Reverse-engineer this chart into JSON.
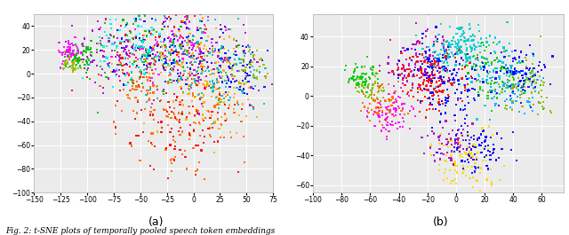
{
  "title_a": "(a)",
  "title_b": "(b)",
  "caption": "Fig. 2: t-SNE plots of temporally pooled speech token embeddings",
  "fig_width": 6.4,
  "fig_height": 2.65,
  "dpi": 100,
  "plot_bg": "#ebebeb",
  "colors_a": [
    "#FF0000",
    "#00BB00",
    "#0000FF",
    "#FF00FF",
    "#00BBBB",
    "#FFAA00",
    "#AA00CC",
    "#FF6600",
    "#99BB00",
    "#00EEEE"
  ],
  "colors_b": [
    "#FF0000",
    "#00CC00",
    "#0000FF",
    "#FF00FF",
    "#00CCCC",
    "#FFD700",
    "#AA00CC",
    "#FF6600",
    "#88BB00",
    "#00AAFF"
  ],
  "xlim_a": [
    -150,
    75
  ],
  "ylim_a": [
    -100,
    50
  ],
  "xlim_b": [
    -100,
    75
  ],
  "ylim_b": [
    -65,
    55
  ],
  "marker_size": 2.5,
  "grid_color": "#ffffff",
  "grid_lw": 0.7,
  "tick_fontsize": 5.5
}
